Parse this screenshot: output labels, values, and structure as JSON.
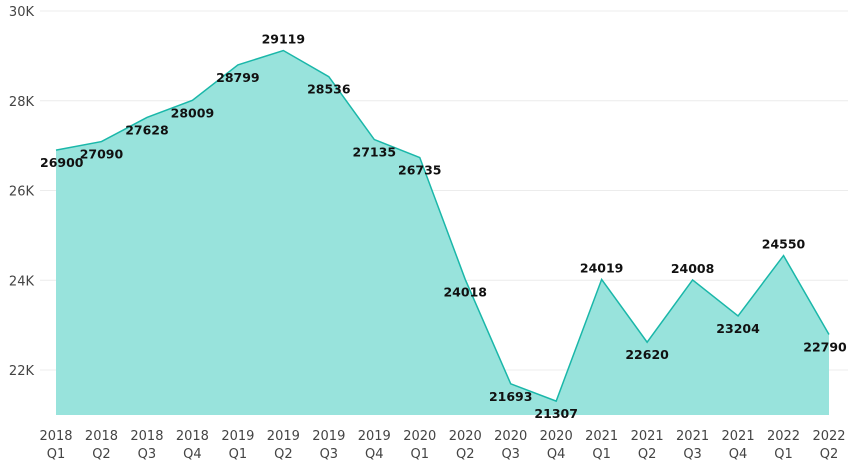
{
  "chart_data": {
    "type": "area",
    "title": "",
    "xlabel": "",
    "ylabel": "",
    "categories": [
      {
        "year": "2018",
        "quarter": "Q1"
      },
      {
        "year": "2018",
        "quarter": "Q2"
      },
      {
        "year": "2018",
        "quarter": "Q3"
      },
      {
        "year": "2018",
        "quarter": "Q4"
      },
      {
        "year": "2019",
        "quarter": "Q1"
      },
      {
        "year": "2019",
        "quarter": "Q2"
      },
      {
        "year": "2019",
        "quarter": "Q3"
      },
      {
        "year": "2019",
        "quarter": "Q4"
      },
      {
        "year": "2020",
        "quarter": "Q1"
      },
      {
        "year": "2020",
        "quarter": "Q2"
      },
      {
        "year": "2020",
        "quarter": "Q3"
      },
      {
        "year": "2020",
        "quarter": "Q4"
      },
      {
        "year": "2021",
        "quarter": "Q1"
      },
      {
        "year": "2021",
        "quarter": "Q2"
      },
      {
        "year": "2021",
        "quarter": "Q3"
      },
      {
        "year": "2021",
        "quarter": "Q4"
      },
      {
        "year": "2022",
        "quarter": "Q1"
      },
      {
        "year": "2022",
        "quarter": "Q2"
      }
    ],
    "values": [
      26900,
      27090,
      27628,
      28009,
      28799,
      29119,
      28536,
      27135,
      26735,
      24018,
      21693,
      21307,
      24019,
      22620,
      24008,
      23204,
      24550,
      22790
    ],
    "data_labels": [
      "26900",
      "27090",
      "27628",
      "28009",
      "28799",
      "29119",
      "28536",
      "27135",
      "26735",
      "24018",
      "21693",
      "21307",
      "24019",
      "22620",
      "24008",
      "23204",
      "24550",
      "22790"
    ],
    "y_ticks": [
      {
        "value": 22000,
        "label": "22K"
      },
      {
        "value": 24000,
        "label": "24K"
      },
      {
        "value": 26000,
        "label": "26K"
      },
      {
        "value": 28000,
        "label": "28K"
      },
      {
        "value": 30000,
        "label": "30K"
      }
    ],
    "ylim": [
      21000,
      30000
    ],
    "grid": true,
    "legend": "none",
    "colors": {
      "line": "#1ab7a9",
      "fill": "#98e3dc",
      "grid": "#ececec",
      "axis_text": "#444444",
      "label_text": "#111111"
    }
  }
}
